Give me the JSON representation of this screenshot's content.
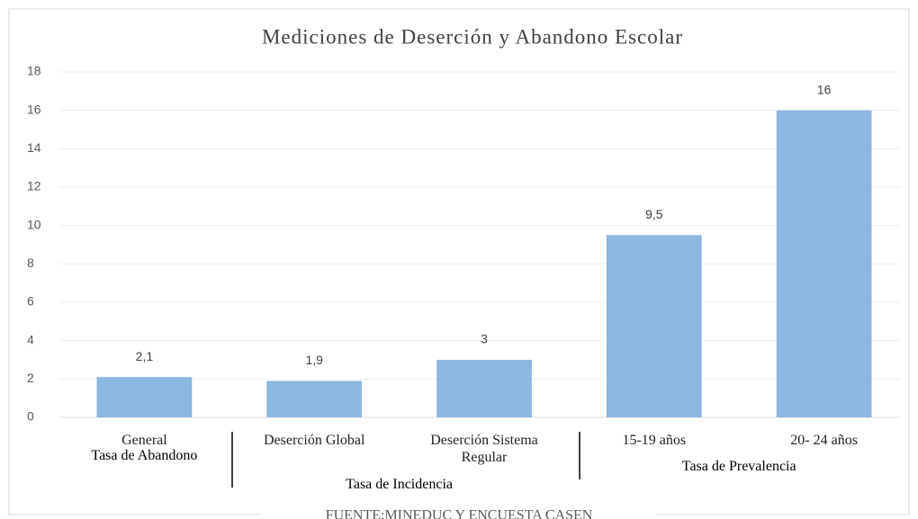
{
  "chart_data": {
    "type": "bar",
    "title": "Mediciones de Deserción y Abandono Escolar",
    "categories": [
      "General",
      "Deserción  Global",
      "Deserción  Sistema Regular",
      "15-19 años",
      "20- 24 años"
    ],
    "values": [
      2.1,
      1.9,
      3,
      9.5,
      16
    ],
    "value_labels": [
      "2,1",
      "1,9",
      "3",
      "9,5",
      "16"
    ],
    "groups": [
      "Tasa de Abandono",
      "Tasa de Incidencia",
      "Tasa de  Prevalencia"
    ],
    "color": "#8cb7e0",
    "ylim": [
      0,
      18
    ],
    "yticks": [
      0,
      2,
      4,
      6,
      8,
      10,
      12,
      14,
      16,
      18
    ],
    "grid": true,
    "source": "FUENTE:MINEDUC Y ENCUESTA CASEN"
  }
}
